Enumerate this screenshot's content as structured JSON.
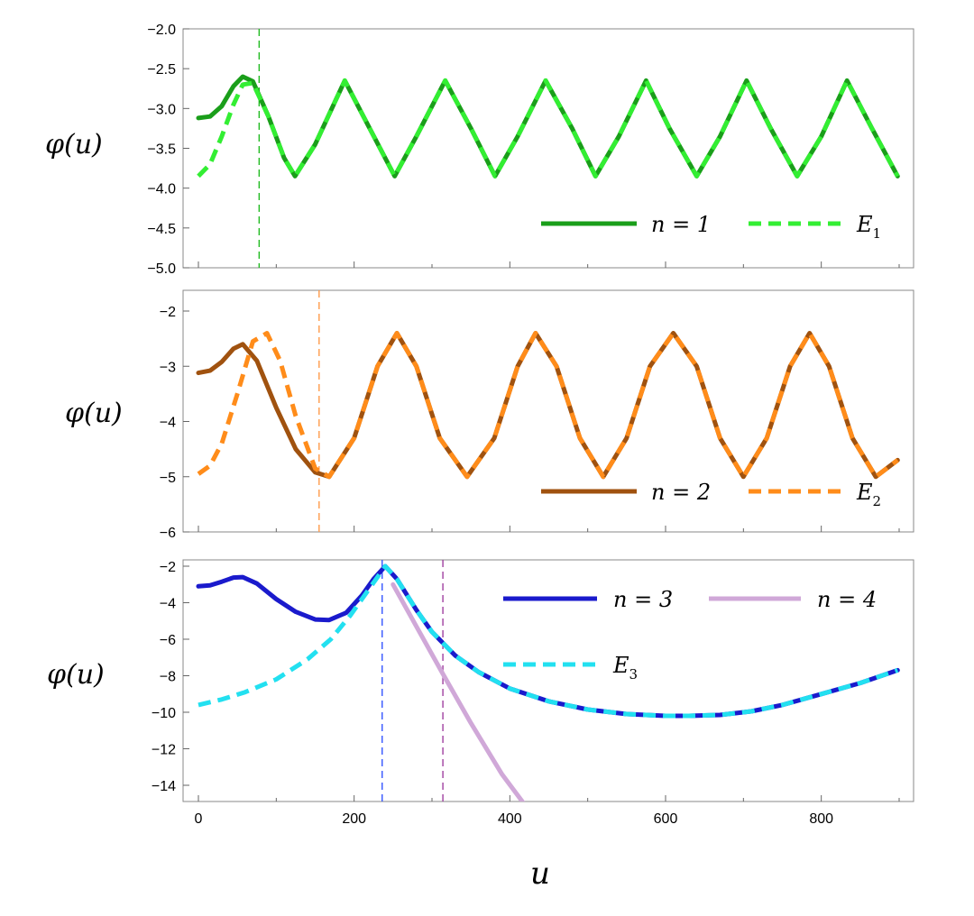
{
  "chart_data": [
    {
      "type": "line",
      "ylabel": "φ(u)",
      "xlim": [
        0,
        900
      ],
      "ylim": [
        -5,
        -2
      ],
      "y_ticks": [
        "−2.0",
        "−2.5",
        "−3.0",
        "−3.5",
        "−4.0",
        "−4.5",
        "−5.0"
      ],
      "y_tick_values": [
        -2,
        -2.5,
        -3,
        -3.5,
        -4,
        -4.5,
        -5
      ],
      "vline": {
        "x": 78,
        "color": "#22bb22"
      },
      "legend_position": "bottom-right",
      "series": [
        {
          "name": "n = 1",
          "label_main": "n = 1",
          "label_sub": "",
          "style": "solid",
          "color": "#1a9e1a",
          "x": [
            0,
            15,
            30,
            45,
            57,
            70,
            90,
            110,
            124,
            150,
            188,
            220,
            252,
            280,
            317,
            350,
            381,
            410,
            446,
            480,
            510,
            540,
            575,
            605,
            640,
            670,
            704,
            735,
            769,
            800,
            833,
            865,
            898
          ],
          "y": [
            -3.12,
            -3.1,
            -2.97,
            -2.72,
            -2.6,
            -2.66,
            -3.1,
            -3.62,
            -3.85,
            -3.45,
            -2.65,
            -3.25,
            -3.85,
            -3.35,
            -2.65,
            -3.25,
            -3.85,
            -3.35,
            -2.65,
            -3.25,
            -3.85,
            -3.35,
            -2.65,
            -3.25,
            -3.85,
            -3.35,
            -2.65,
            -3.25,
            -3.85,
            -3.35,
            -2.65,
            -3.25,
            -3.85
          ]
        },
        {
          "name": "E1",
          "label_main": "E",
          "label_sub": "1",
          "style": "dashed",
          "color": "#33ee33",
          "x": [
            0,
            15,
            30,
            45,
            57,
            70,
            90,
            110,
            124,
            150,
            188,
            220,
            252,
            280,
            317,
            350,
            381,
            410,
            446,
            480,
            510,
            540,
            575,
            605,
            640,
            670,
            704,
            735,
            769,
            800,
            833,
            865,
            898
          ],
          "y": [
            -3.85,
            -3.7,
            -3.35,
            -2.95,
            -2.7,
            -2.68,
            -3.1,
            -3.62,
            -3.85,
            -3.45,
            -2.65,
            -3.25,
            -3.85,
            -3.35,
            -2.65,
            -3.25,
            -3.85,
            -3.35,
            -2.65,
            -3.25,
            -3.85,
            -3.35,
            -2.65,
            -3.25,
            -3.85,
            -3.35,
            -2.65,
            -3.25,
            -3.85,
            -3.35,
            -2.65,
            -3.25,
            -3.85
          ]
        }
      ]
    },
    {
      "type": "line",
      "ylabel": "φ(u)",
      "xlim": [
        0,
        900
      ],
      "ylim": [
        -6,
        -2
      ],
      "y_ticks": [
        "−2",
        "−3",
        "−4",
        "−5",
        "−6"
      ],
      "y_tick_values": [
        -2,
        -3,
        -4,
        -5,
        -6
      ],
      "vline": {
        "x": 155,
        "color": "#ff9a4a"
      },
      "legend_position": "bottom-right",
      "series": [
        {
          "name": "n = 2",
          "label_main": "n = 2",
          "label_sub": "",
          "style": "solid",
          "color": "#a0520f",
          "x": [
            0,
            15,
            30,
            45,
            57,
            75,
            100,
            125,
            150,
            168,
            200,
            230,
            255,
            280,
            310,
            345,
            380,
            410,
            433,
            460,
            490,
            520,
            550,
            580,
            610,
            640,
            670,
            700,
            730,
            760,
            785,
            810,
            840,
            870,
            898
          ],
          "y": [
            -3.12,
            -3.08,
            -2.92,
            -2.68,
            -2.6,
            -2.9,
            -3.75,
            -4.5,
            -4.92,
            -5.0,
            -4.3,
            -3.0,
            -2.4,
            -3.0,
            -4.3,
            -5.0,
            -4.3,
            -3.0,
            -2.4,
            -3.0,
            -4.3,
            -5.0,
            -4.3,
            -3.0,
            -2.4,
            -3.0,
            -4.3,
            -5.0,
            -4.3,
            -3.0,
            -2.4,
            -3.0,
            -4.3,
            -5.0,
            -4.7
          ]
        },
        {
          "name": "E2",
          "label_main": "E",
          "label_sub": "2",
          "style": "dashed",
          "color": "#ff8c1a",
          "x": [
            0,
            15,
            30,
            50,
            70,
            88,
            105,
            125,
            150,
            168,
            200,
            230,
            255,
            280,
            310,
            345,
            380,
            410,
            433,
            460,
            490,
            520,
            550,
            580,
            610,
            640,
            670,
            700,
            730,
            760,
            785,
            810,
            840,
            870,
            898
          ],
          "y": [
            -4.95,
            -4.8,
            -4.4,
            -3.5,
            -2.55,
            -2.4,
            -2.9,
            -3.9,
            -4.85,
            -5.0,
            -4.3,
            -3.0,
            -2.4,
            -3.0,
            -4.3,
            -5.0,
            -4.3,
            -3.0,
            -2.4,
            -3.0,
            -4.3,
            -5.0,
            -4.3,
            -3.0,
            -2.4,
            -3.0,
            -4.3,
            -5.0,
            -4.3,
            -3.0,
            -2.4,
            -3.0,
            -4.3,
            -5.0,
            -4.7
          ]
        }
      ]
    },
    {
      "type": "line",
      "ylabel": "φ(u)",
      "xlabel": "u",
      "xlim": [
        0,
        900
      ],
      "ylim": [
        -15,
        -2
      ],
      "x_ticks": [
        "0",
        "200",
        "400",
        "600",
        "800"
      ],
      "x_tick_values": [
        0,
        200,
        400,
        600,
        800
      ],
      "y_ticks": [
        "−2",
        "−4",
        "−6",
        "−8",
        "−10",
        "−12",
        "−14"
      ],
      "y_tick_values": [
        -2,
        -4,
        -6,
        -8,
        -10,
        -12,
        -14
      ],
      "vlines": [
        {
          "x": 236,
          "color": "#3355ff"
        },
        {
          "x": 314,
          "color": "#a040a0"
        }
      ],
      "legend_position": "top-right",
      "series": [
        {
          "name": "n = 4",
          "label_main": "n = 4",
          "label_sub": "",
          "style": "solid",
          "color": "#d0a8d8",
          "x": [
            250,
            280,
            314,
            350,
            390,
            418
          ],
          "y": [
            -3.0,
            -5.3,
            -7.9,
            -10.6,
            -13.4,
            -15.0
          ]
        },
        {
          "name": "n = 3",
          "label_main": "n = 3",
          "label_sub": "",
          "style": "solid",
          "color": "#1a1acc",
          "x": [
            0,
            15,
            30,
            45,
            57,
            75,
            100,
            125,
            150,
            168,
            190,
            210,
            225,
            240,
            255,
            280,
            300,
            330,
            360,
            400,
            450,
            500,
            550,
            600,
            630,
            670,
            710,
            750,
            800,
            850,
            898
          ],
          "y": [
            -3.1,
            -3.05,
            -2.85,
            -2.62,
            -2.6,
            -2.95,
            -3.8,
            -4.5,
            -4.92,
            -4.95,
            -4.55,
            -3.6,
            -2.7,
            -2.0,
            -2.7,
            -4.4,
            -5.6,
            -6.9,
            -7.8,
            -8.7,
            -9.4,
            -9.85,
            -10.1,
            -10.2,
            -10.2,
            -10.15,
            -9.95,
            -9.6,
            -9.0,
            -8.4,
            -7.7
          ]
        },
        {
          "name": "E3",
          "label_main": "E",
          "label_sub": "3",
          "style": "dashed",
          "color": "#22e0f0",
          "x": [
            0,
            30,
            60,
            100,
            140,
            170,
            195,
            215,
            240,
            255,
            280,
            300,
            330,
            360,
            400,
            450,
            500,
            550,
            600,
            630,
            670,
            710,
            750,
            800,
            850,
            898
          ],
          "y": [
            -9.6,
            -9.3,
            -8.9,
            -8.2,
            -7.1,
            -6.0,
            -4.7,
            -3.5,
            -2.0,
            -2.7,
            -4.4,
            -5.6,
            -6.9,
            -7.8,
            -8.7,
            -9.4,
            -9.85,
            -10.1,
            -10.2,
            -10.2,
            -10.15,
            -9.95,
            -9.6,
            -9.0,
            -8.4,
            -7.7
          ]
        }
      ]
    }
  ]
}
